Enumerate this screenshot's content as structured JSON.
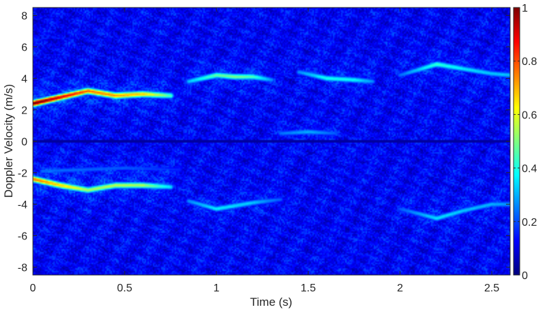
{
  "chart_data": {
    "type": "heatmap",
    "title": "",
    "xlabel": "Time (s)",
    "ylabel": "Doppler Velocity (m/s)",
    "xlim": [
      0,
      2.6
    ],
    "ylim": [
      -8.5,
      8.5
    ],
    "xticks": [
      0,
      0.5,
      1,
      1.5,
      2,
      2.5
    ],
    "xtick_labels": [
      "0",
      "0.5",
      "1",
      "1.5",
      "2",
      "2.5"
    ],
    "yticks": [
      -8,
      -6,
      -4,
      -2,
      0,
      2,
      4,
      6,
      8
    ],
    "ytick_labels": [
      "-8",
      "-6",
      "-4",
      "-2",
      "0",
      "2",
      "4",
      "6",
      "8"
    ],
    "colorbar": {
      "colormap": "jet",
      "range": [
        0,
        1
      ],
      "ticks": [
        0,
        0.2,
        0.4,
        0.6,
        0.8,
        1
      ],
      "tick_labels": [
        "0",
        "0.2",
        "0.4",
        "0.6",
        "0.8",
        "1"
      ]
    },
    "background_level": 0.12,
    "zero_velocity_line_level": 0.03,
    "ridges": [
      {
        "t": [
          0,
          0.15,
          0.3,
          0.45,
          0.6,
          0.75
        ],
        "v": [
          2.4,
          2.8,
          3.2,
          2.9,
          3.0,
          2.9
        ],
        "intensity": [
          0.97,
          0.85,
          0.72,
          0.68,
          0.62,
          0.42
        ]
      },
      {
        "t": [
          0,
          0.15,
          0.3,
          0.45,
          0.6,
          0.75
        ],
        "v": [
          -2.4,
          -2.8,
          -3.1,
          -2.8,
          -2.8,
          -2.9
        ],
        "intensity": [
          0.72,
          0.62,
          0.5,
          0.52,
          0.5,
          0.32
        ]
      },
      {
        "t": [
          0.85,
          1.0,
          1.1,
          1.2,
          1.3
        ],
        "v": [
          3.8,
          4.2,
          4.1,
          4.1,
          3.9
        ],
        "intensity": [
          0.3,
          0.44,
          0.46,
          0.42,
          0.25
        ]
      },
      {
        "t": [
          0.85,
          1.0,
          1.2,
          1.35
        ],
        "v": [
          -3.8,
          -4.3,
          -3.9,
          -3.7
        ],
        "intensity": [
          0.25,
          0.34,
          0.3,
          0.2
        ]
      },
      {
        "t": [
          1.45,
          1.6,
          1.75,
          1.85
        ],
        "v": [
          4.4,
          4.0,
          3.9,
          3.8
        ],
        "intensity": [
          0.25,
          0.37,
          0.35,
          0.25
        ]
      },
      {
        "t": [
          2.0,
          2.2,
          2.35,
          2.5,
          2.6
        ],
        "v": [
          4.2,
          4.9,
          4.6,
          4.3,
          4.2
        ],
        "intensity": [
          0.22,
          0.4,
          0.33,
          0.3,
          0.3
        ]
      },
      {
        "t": [
          2.0,
          2.2,
          2.35,
          2.5,
          2.6
        ],
        "v": [
          -4.3,
          -4.9,
          -4.4,
          -4.0,
          -4.0
        ],
        "intensity": [
          0.2,
          0.33,
          0.3,
          0.28,
          0.26
        ]
      },
      {
        "t": [
          1.35,
          1.5,
          1.65
        ],
        "v": [
          0.5,
          0.6,
          0.5
        ],
        "intensity": [
          0.22,
          0.28,
          0.2
        ]
      },
      {
        "t": [
          0.05,
          0.5,
          0.8
        ],
        "v": [
          -1.9,
          -1.7,
          -1.8
        ],
        "intensity": [
          0.22,
          0.2,
          0.15
        ]
      }
    ]
  }
}
